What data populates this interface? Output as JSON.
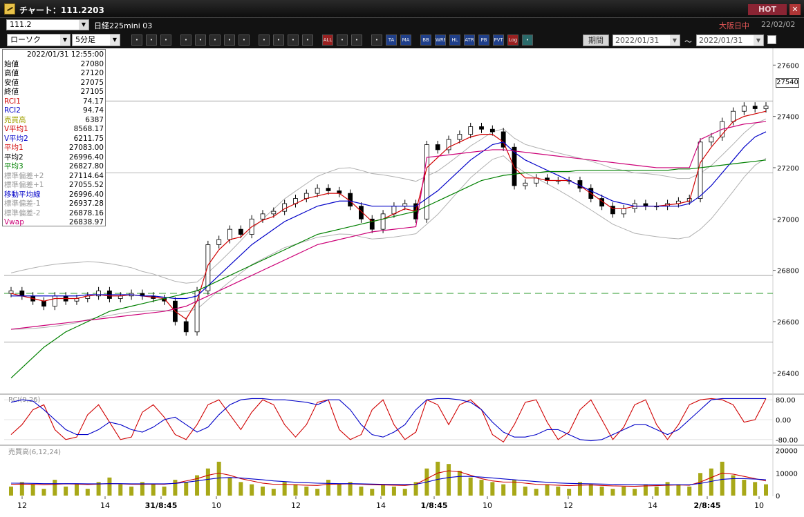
{
  "window": {
    "title": "チャート：111.2203",
    "hot_label": "HOT",
    "close_label": "✕"
  },
  "header": {
    "symbol_code": "111.2",
    "product_name": "日経225mini 03",
    "market_status": "大阪日中",
    "market_date": "22/02/02"
  },
  "toolbar": {
    "chart_type": "ローソク",
    "interval": "5分足",
    "buttons": [
      "search",
      "crosshair",
      "bracket",
      "camera",
      "grid",
      "up-down",
      "info",
      "trendline",
      "cursor",
      "arrow-hook",
      "candle",
      "price-sort",
      "all",
      "wrench",
      "pencil",
      "palette",
      "ta",
      "ma",
      "bb",
      "wre",
      "hl",
      "atr",
      "pb",
      "pvt",
      "log",
      "export"
    ],
    "button_labels": {
      "all": "ALL",
      "ta": "TA",
      "ma": "MA",
      "bb": "BB",
      "wre": "WRE",
      "hl": "HL",
      "atr": "ATR",
      "pb": "PB",
      "pvt": "PVT",
      "log": "Log"
    },
    "period_label": "期間",
    "date_from": "2022/01/31",
    "date_to": "2022/01/31",
    "tilde": "〜"
  },
  "info_panel": {
    "datetime": "2022/01/31 12:55:00",
    "rows": [
      {
        "label": "始値",
        "value": "27080",
        "color": "#000000"
      },
      {
        "label": "高値",
        "value": "27120",
        "color": "#000000"
      },
      {
        "label": "安値",
        "value": "27075",
        "color": "#000000"
      },
      {
        "label": "終値",
        "value": "27105",
        "color": "#000000"
      },
      {
        "label": "RCI1",
        "value": "74.17",
        "color": "#d00000"
      },
      {
        "label": "RCI2",
        "value": "94.74",
        "color": "#0000c8"
      },
      {
        "label": "売買高",
        "value": "6387",
        "color": "#a0a000"
      },
      {
        "label": "V平均1",
        "value": "8568.17",
        "color": "#d00000"
      },
      {
        "label": "V平均2",
        "value": "6211.75",
        "color": "#0000c8"
      },
      {
        "label": "平均1",
        "value": "27083.00",
        "color": "#d00000"
      },
      {
        "label": "平均2",
        "value": "26996.40",
        "color": "#000000"
      },
      {
        "label": "平均3",
        "value": "26827.80",
        "color": "#008000"
      },
      {
        "label": "標準偏差+2",
        "value": "27114.64",
        "color": "#999999"
      },
      {
        "label": "標準偏差+1",
        "value": "27055.52",
        "color": "#999999"
      },
      {
        "label": "移動平均線",
        "value": "26996.40",
        "color": "#0000c8"
      },
      {
        "label": "標準偏差-1",
        "value": "26937.28",
        "color": "#999999"
      },
      {
        "label": "標準偏差-2",
        "value": "26878.16",
        "color": "#999999"
      },
      {
        "label": "Vwap",
        "value": "26838.97",
        "color": "#cc0077"
      }
    ]
  },
  "last_price": "27540",
  "chart_data": [
    {
      "type": "line",
      "title": "",
      "ylim": [
        26320,
        27660
      ],
      "yticks": [
        "27600",
        "27400",
        "27200",
        "27000",
        "26800",
        "26600",
        "26400"
      ],
      "x_labels": [
        "12",
        "14",
        "31/8:45",
        "10",
        "12",
        "14",
        "1/8:45",
        "10",
        "12",
        "14",
        "2/8:45",
        "10"
      ],
      "series": [
        {
          "color": "#000000",
          "values": [
            26720,
            26700,
            26680,
            26660,
            26700,
            26680,
            26690,
            26700,
            26720,
            26690,
            26700,
            26710,
            26700,
            26690,
            26680,
            26600,
            26560,
            26720,
            26900,
            26920,
            26960,
            26940,
            27000,
            27020,
            27030,
            27060,
            27080,
            27100,
            27120,
            27110,
            27100,
            27050,
            27000,
            26960,
            27020,
            27050,
            27060,
            27000,
            27290,
            27270,
            27310,
            27330,
            27360,
            27350,
            27340,
            27280,
            27130,
            27140,
            27160,
            27150,
            27150,
            27150,
            27120,
            27080,
            27050,
            27020,
            27040,
            27060,
            27050,
            27050,
            27060,
            27070,
            27080,
            27300,
            27320,
            27380,
            27420,
            27440,
            27430,
            27440
          ]
        },
        {
          "color": "#d00000",
          "values": [
            26710,
            26700,
            26690,
            26680,
            26690,
            26690,
            26690,
            26700,
            26705,
            26700,
            26700,
            26705,
            26700,
            26695,
            26690,
            26640,
            26610,
            26680,
            26820,
            26880,
            26920,
            26930,
            26970,
            26995,
            27010,
            27040,
            27060,
            27080,
            27090,
            27100,
            27100,
            27070,
            27030,
            26990,
            27000,
            27020,
            27040,
            27030,
            27200,
            27240,
            27280,
            27300,
            27320,
            27330,
            27330,
            27300,
            27200,
            27160,
            27160,
            27150,
            27150,
            27150,
            27130,
            27100,
            27070,
            27040,
            27040,
            27050,
            27050,
            27050,
            27055,
            27060,
            27070,
            27220,
            27280,
            27330,
            27380,
            27400,
            27410,
            27420
          ]
        },
        {
          "color": "#0000c8",
          "values": [
            26700,
            26700,
            26700,
            26700,
            26700,
            26700,
            26700,
            26705,
            26705,
            26705,
            26705,
            26705,
            26700,
            26700,
            26695,
            26690,
            26690,
            26700,
            26740,
            26780,
            26820,
            26860,
            26900,
            26930,
            26960,
            26990,
            27010,
            27030,
            27050,
            27060,
            27070,
            27070,
            27060,
            27050,
            27050,
            27050,
            27050,
            27050,
            27080,
            27110,
            27150,
            27190,
            27230,
            27260,
            27290,
            27300,
            27260,
            27230,
            27210,
            27190,
            27170,
            27150,
            27130,
            27110,
            27090,
            27070,
            27060,
            27050,
            27050,
            27050,
            27050,
            27050,
            27060,
            27090,
            27130,
            27180,
            27230,
            27280,
            27320,
            27340
          ]
        },
        {
          "color": "#008000",
          "values": [
            26380,
            26420,
            26460,
            26500,
            26530,
            26560,
            26580,
            26600,
            26620,
            26640,
            26650,
            26660,
            26670,
            26680,
            26690,
            26700,
            26710,
            26720,
            26740,
            26760,
            26780,
            26800,
            26820,
            26840,
            26860,
            26880,
            26900,
            26920,
            26940,
            26950,
            26960,
            26970,
            26980,
            26990,
            27000,
            27010,
            27020,
            27030,
            27050,
            27070,
            27090,
            27110,
            27130,
            27150,
            27160,
            27170,
            27175,
            27180,
            27180,
            27185,
            27185,
            27185,
            27190,
            27190,
            27190,
            27190,
            27190,
            27190,
            27190,
            27190,
            27190,
            27195,
            27195,
            27200,
            27205,
            27210,
            27215,
            27220,
            27225,
            27230
          ]
        },
        {
          "color": "#cc0077",
          "values": [
            26570,
            26575,
            26580,
            26585,
            26590,
            26595,
            26600,
            26605,
            26610,
            26615,
            26620,
            26625,
            26630,
            26635,
            26640,
            26650,
            26660,
            26680,
            26700,
            26720,
            26740,
            26760,
            26780,
            26800,
            26820,
            26840,
            26860,
            26880,
            26900,
            26910,
            26920,
            26930,
            26940,
            26950,
            26955,
            26960,
            26965,
            26970,
            27240,
            27245,
            27250,
            27255,
            27260,
            27265,
            27270,
            27270,
            27265,
            27260,
            27255,
            27250,
            27245,
            27240,
            27235,
            27230,
            27225,
            27220,
            27215,
            27210,
            27205,
            27200,
            27200,
            27200,
            27200,
            27310,
            27330,
            27350,
            27360,
            27370,
            27375,
            27380
          ]
        }
      ]
    },
    {
      "type": "line",
      "title": "RCI(9,26)",
      "ylim": [
        -100,
        100
      ],
      "yticks": [
        "80.00",
        "0.00",
        "-80.00"
      ],
      "series": [
        {
          "color": "#d00000",
          "values": [
            -60,
            -20,
            40,
            60,
            -40,
            -80,
            -70,
            20,
            60,
            -10,
            -80,
            -70,
            30,
            60,
            10,
            -60,
            -80,
            -20,
            60,
            80,
            20,
            -40,
            30,
            80,
            60,
            -20,
            -70,
            -20,
            70,
            80,
            -40,
            -80,
            -60,
            40,
            80,
            -20,
            -80,
            -50,
            80,
            60,
            -20,
            60,
            80,
            40,
            -60,
            -90,
            -20,
            70,
            80,
            -10,
            -80,
            -50,
            40,
            80,
            0,
            -80,
            -30,
            60,
            80,
            -20,
            -80,
            -20,
            60,
            80,
            85,
            80,
            60,
            -10,
            0,
            85
          ]
        },
        {
          "color": "#0000c8",
          "values": [
            70,
            80,
            75,
            40,
            0,
            -40,
            -60,
            -60,
            -40,
            -10,
            -20,
            -40,
            -50,
            -30,
            0,
            10,
            -20,
            -50,
            -30,
            20,
            60,
            80,
            85,
            85,
            80,
            80,
            75,
            70,
            60,
            80,
            80,
            40,
            -20,
            -60,
            -70,
            -50,
            -20,
            40,
            80,
            85,
            85,
            80,
            70,
            40,
            -10,
            -50,
            -70,
            -70,
            -60,
            -40,
            -40,
            -60,
            -80,
            -85,
            -80,
            -60,
            -40,
            -20,
            -20,
            -40,
            -60,
            -40,
            0,
            40,
            80,
            85,
            85,
            85,
            85,
            85
          ]
        }
      ]
    },
    {
      "type": "bar",
      "title": "売買高(6,12,24)",
      "ylim": [
        0,
        22000
      ],
      "yticks": [
        "20000",
        "10000",
        "0"
      ],
      "values": [
        4000,
        6000,
        5000,
        3000,
        7000,
        4000,
        5000,
        3000,
        6000,
        8000,
        5000,
        4000,
        6000,
        5000,
        4000,
        7000,
        6000,
        9000,
        12000,
        15000,
        8000,
        6000,
        5000,
        4000,
        3000,
        6000,
        5000,
        4000,
        3000,
        7000,
        5000,
        6000,
        4000,
        3000,
        5000,
        4000,
        3000,
        6000,
        12000,
        15000,
        14000,
        11000,
        8000,
        7000,
        6000,
        5000,
        7000,
        4000,
        3000,
        5000,
        4000,
        3000,
        6000,
        5000,
        4000,
        3000,
        4000,
        3000,
        5000,
        4000,
        6000,
        5000,
        4000,
        10000,
        12000,
        15000,
        9000,
        7000,
        6000,
        5000
      ],
      "series": [
        {
          "color": "#d00000",
          "values": [
            5000,
            5100,
            5000,
            4800,
            5000,
            5200,
            5100,
            4900,
            5100,
            5300,
            5200,
            5000,
            5000,
            5100,
            5000,
            5500,
            6500,
            7500,
            9000,
            10000,
            9000,
            7500,
            6500,
            5500,
            5000,
            5000,
            4800,
            4600,
            4500,
            5000,
            5100,
            5200,
            5000,
            4800,
            4700,
            4600,
            4500,
            5000,
            7500,
            10000,
            11000,
            10500,
            9000,
            7500,
            6500,
            6000,
            6000,
            5500,
            5000,
            4800,
            4600,
            4400,
            4600,
            4700,
            4500,
            4300,
            4200,
            4100,
            4300,
            4400,
            4600,
            4700,
            4600,
            6000,
            8000,
            10000,
            9500,
            8500,
            7500,
            6500
          ]
        },
        {
          "color": "#0000c8",
          "values": [
            5500,
            5500,
            5400,
            5300,
            5300,
            5300,
            5300,
            5200,
            5200,
            5300,
            5300,
            5200,
            5200,
            5200,
            5200,
            5400,
            5900,
            6500,
            7200,
            7800,
            8000,
            7800,
            7400,
            7000,
            6500,
            6200,
            5900,
            5700,
            5500,
            5400,
            5300,
            5300,
            5200,
            5100,
            5000,
            5000,
            4900,
            5000,
            6000,
            7200,
            8000,
            8500,
            8500,
            8200,
            7800,
            7400,
            7000,
            6600,
            6200,
            5900,
            5600,
            5400,
            5300,
            5200,
            5100,
            5000,
            4900,
            4800,
            4800,
            4800,
            4800,
            4800,
            4800,
            5400,
            6300,
            7200,
            7500,
            7500,
            7300,
            7000
          ]
        }
      ]
    }
  ]
}
